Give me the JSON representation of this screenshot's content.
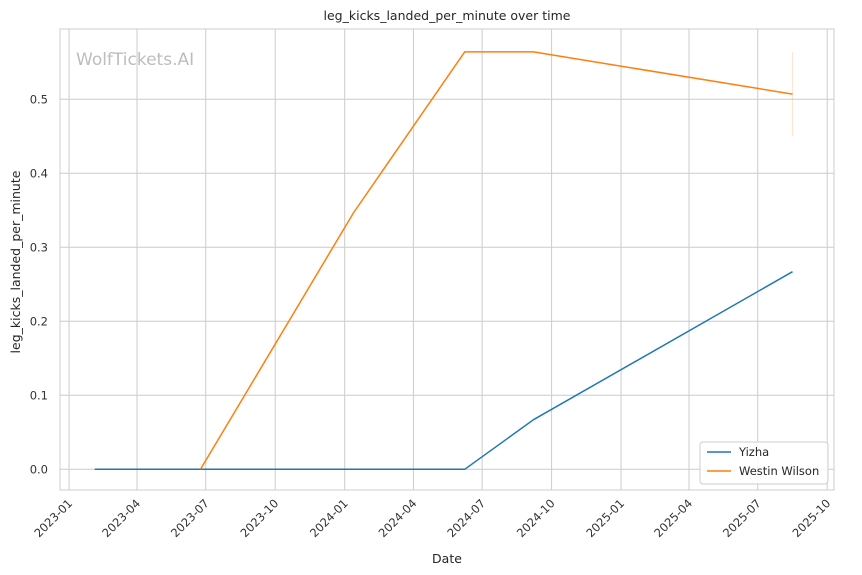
{
  "chart_data": {
    "type": "line",
    "title": "leg_kicks_landed_per_minute over time",
    "xlabel": "Date",
    "ylabel": "leg_kicks_landed_per_minute",
    "watermark": "WolfTickets.AI",
    "x_ticks": [
      "2023-01",
      "2023-04",
      "2023-07",
      "2023-10",
      "2024-01",
      "2024-04",
      "2024-07",
      "2024-10",
      "2025-01",
      "2025-04",
      "2025-07",
      "2025-10"
    ],
    "y_ticks": [
      "0.0",
      "0.1",
      "0.2",
      "0.3",
      "0.4",
      "0.5"
    ],
    "xlim": [
      "2022-12-20",
      "2025-10-10"
    ],
    "ylim": [
      -0.028,
      0.595
    ],
    "grid": true,
    "legend_position": "lower-right",
    "series": [
      {
        "name": "Yizha",
        "color": "#1f77b4",
        "points": [
          {
            "x": "2023-02-04",
            "y": 0.0
          },
          {
            "x": "2024-06-08",
            "y": 0.0
          },
          {
            "x": "2024-09-07",
            "y": 0.067
          },
          {
            "x": "2025-08-16",
            "y": 0.267
          }
        ]
      },
      {
        "name": "Westin Wilson",
        "color": "#ff7f0e",
        "points": [
          {
            "x": "2023-06-24",
            "y": 0.0
          },
          {
            "x": "2024-01-13",
            "y": 0.347
          },
          {
            "x": "2024-06-08",
            "y": 0.564
          },
          {
            "x": "2024-09-07",
            "y": 0.564
          },
          {
            "x": "2025-08-16",
            "y": 0.507
          }
        ],
        "errorbar": {
          "x": "2025-08-16",
          "low": 0.45,
          "high": 0.564
        }
      }
    ]
  }
}
